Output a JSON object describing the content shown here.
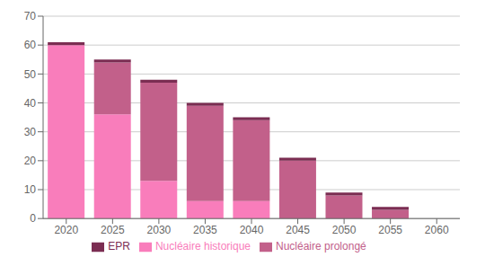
{
  "chart_data": {
    "type": "bar",
    "stacked": true,
    "categories": [
      "2020",
      "2025",
      "2030",
      "2035",
      "2040",
      "2045",
      "2050",
      "2055",
      "2060"
    ],
    "series": [
      {
        "name": "Nucléaire historique",
        "color": "#F97DBB",
        "values": [
          60,
          36,
          13,
          6,
          6,
          0,
          0,
          0,
          0
        ]
      },
      {
        "name": "Nucléaire prolongé",
        "color": "#C2608A",
        "values": [
          0,
          18,
          34,
          33,
          28,
          20,
          8,
          3,
          0
        ]
      },
      {
        "name": "EPR",
        "color": "#7B2D52",
        "values": [
          1,
          1,
          1,
          1,
          1,
          1,
          1,
          1,
          0
        ]
      }
    ],
    "ylim": [
      0,
      70
    ],
    "yticks": [
      0,
      10,
      20,
      30,
      40,
      50,
      60,
      70
    ],
    "grid": true,
    "legend": "bottom"
  }
}
